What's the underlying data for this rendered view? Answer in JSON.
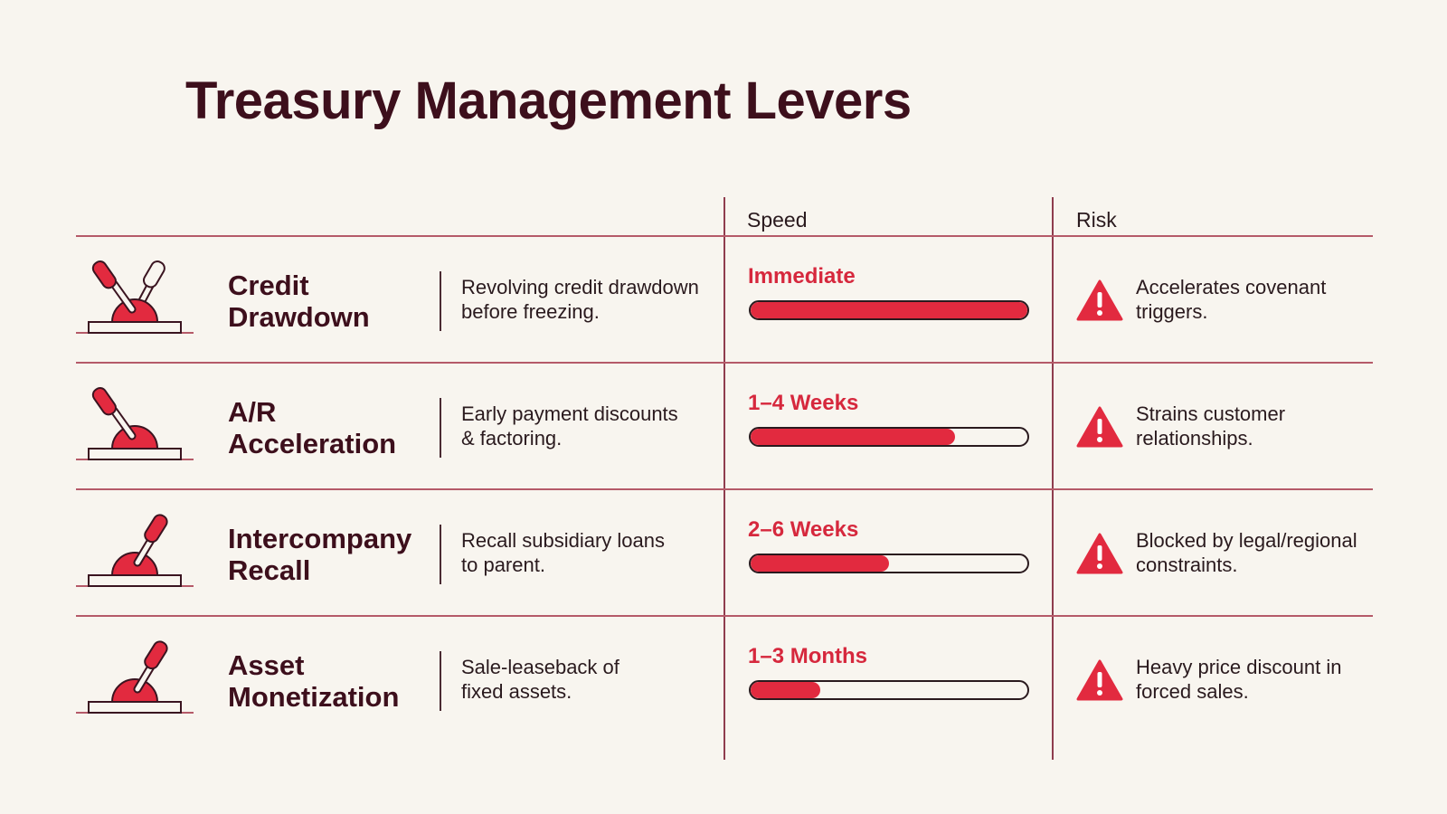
{
  "title": "Treasury Management Levers",
  "columns": {
    "speed": "Speed",
    "risk": "Risk"
  },
  "colors": {
    "accent": "#e22a3f",
    "title": "#3d0f1c",
    "divider": "#b55a69"
  },
  "rows": [
    {
      "name": "Credit\nDrawdown",
      "description": "Revolving credit drawdown\nbefore freezing.",
      "speed_label": "Immediate",
      "speed_fill": 1.0,
      "risk": "Accelerates covenant\ntriggers.",
      "icon": "double-lever-icon"
    },
    {
      "name": "A/R\nAcceleration",
      "description": "Early payment discounts\n& factoring.",
      "speed_label": "1–4 Weeks",
      "speed_fill": 0.74,
      "risk": "Strains customer\nrelationships.",
      "icon": "lever-left-icon"
    },
    {
      "name": "Intercompany\nRecall",
      "description": "Recall subsidiary loans\nto parent.",
      "speed_label": "2–6 Weeks",
      "speed_fill": 0.5,
      "risk": "Blocked by legal/regional\nconstraints.",
      "icon": "lever-right-icon"
    },
    {
      "name": "Asset\nMonetization",
      "description": "Sale-leaseback of\nfixed assets.",
      "speed_label": "1–3 Months",
      "speed_fill": 0.25,
      "risk": "Heavy price discount in\nforced sales.",
      "icon": "lever-right-icon"
    }
  ]
}
